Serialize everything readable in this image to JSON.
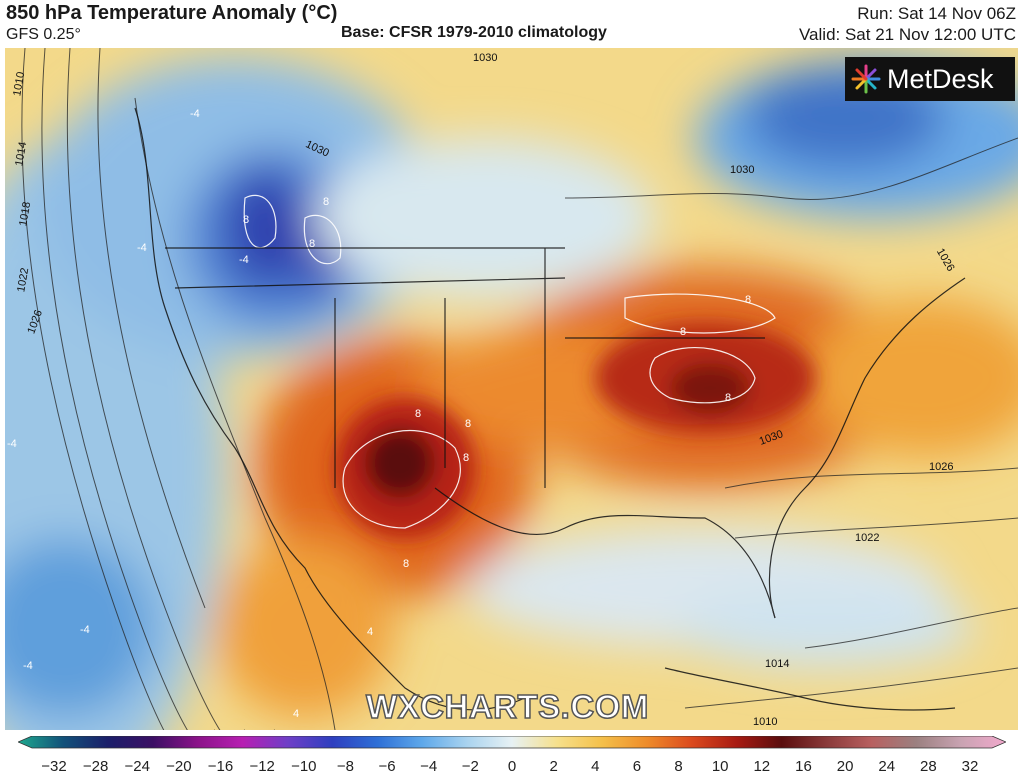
{
  "header": {
    "title": "850 hPa Temperature Anomaly (°C)",
    "model": "GFS 0.25°",
    "base": "Base: CFSR 1979-2010 climatology",
    "run": "Run: Sat 14 Nov 06Z",
    "valid": "Valid: Sat 21 Nov 12:00 UTC"
  },
  "brand": {
    "logo_text": "MetDesk",
    "watermark": "WXCHARTS.COM"
  },
  "map": {
    "pressure_labels": [
      "1010",
      "1014",
      "1018",
      "1022",
      "1026",
      "1030",
      "1030",
      "1026",
      "1026",
      "1022",
      "1014",
      "1010",
      "1030",
      "1030"
    ],
    "anomaly_labels": [
      "8",
      "8",
      "8",
      "8",
      "8",
      "8",
      "8",
      "8",
      "8",
      "8",
      "-4",
      "-4",
      "-4",
      "-4",
      "-4",
      "4",
      "4",
      "-4"
    ]
  },
  "color_scale": {
    "ticks": [
      "−32",
      "−28",
      "−24",
      "−20",
      "−16",
      "−12",
      "−10",
      "−8",
      "−6",
      "−4",
      "−2",
      "0",
      "2",
      "4",
      "6",
      "8",
      "10",
      "12",
      "16",
      "20",
      "24",
      "28",
      "32"
    ],
    "colors": [
      "#1fa98e",
      "#12527a",
      "#1b1f6a",
      "#3b0f64",
      "#8b1389",
      "#b71fb2",
      "#6f3fc7",
      "#2e3fbf",
      "#2e6fd6",
      "#5ea8ea",
      "#a9d3ef",
      "#e7f1f4",
      "#f6e08c",
      "#f4c04a",
      "#ee8c2a",
      "#db4a1e",
      "#a81b13",
      "#5a0d0d",
      "#8a3a3a",
      "#b86060",
      "#9b8080",
      "#c9a3b2",
      "#f1a8cc"
    ]
  }
}
